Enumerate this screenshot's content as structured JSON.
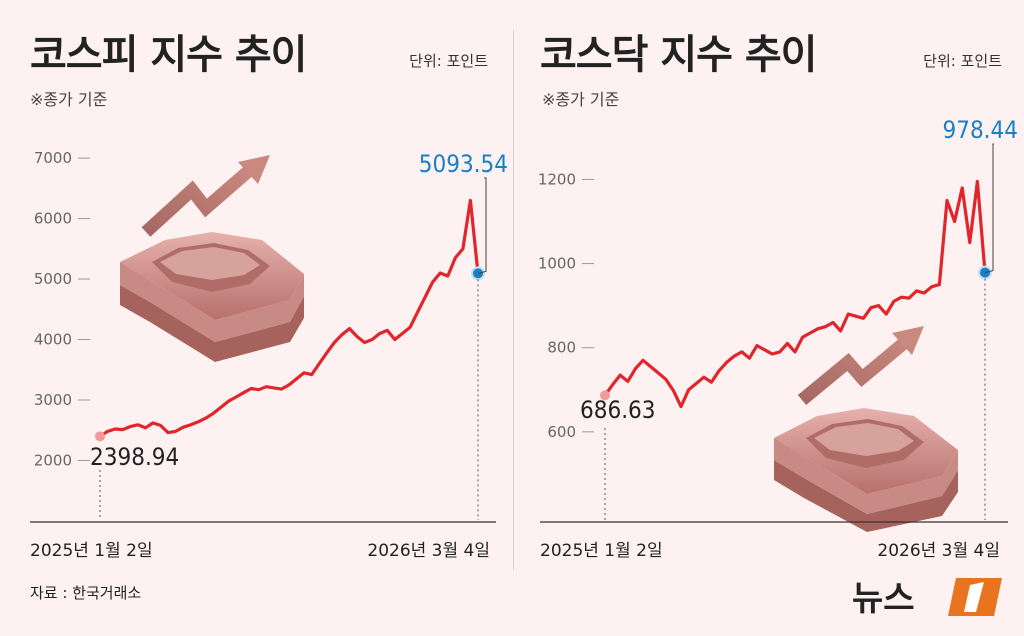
{
  "source": "자료 : 한국거래소",
  "logo_text": "뉴스1",
  "colors": {
    "line": "#e0262b",
    "highlight": "#1a7fc4",
    "axis": "#888888"
  },
  "chart_data": [
    {
      "type": "line",
      "title": "코스피 지수 추이",
      "unit": "단위: 포인트",
      "note": "※종가 기준",
      "ylim": [
        1800,
        7200
      ],
      "yticks": [
        2000,
        3000,
        4000,
        5000,
        6000,
        7000
      ],
      "xlabels": [
        "2025년 1월 2일",
        "2026년 3월 4일"
      ],
      "start_label": "2398.94",
      "end_label": "5093.54",
      "series": [
        {
          "values": [
            2398.94,
            2480,
            2520,
            2510,
            2560,
            2590,
            2540,
            2620,
            2580,
            2460,
            2480,
            2550,
            2590,
            2640,
            2700,
            2780,
            2880,
            2980,
            3050,
            3120,
            3190,
            3170,
            3220,
            3200,
            3180,
            3250,
            3350,
            3450,
            3420,
            3600,
            3780,
            3950,
            4080,
            4180,
            4050,
            3950,
            4000,
            4100,
            4150,
            4000,
            4100,
            4200,
            4450,
            4700,
            4950,
            5100,
            5050,
            5350,
            5500,
            6300,
            5093.54
          ]
        }
      ]
    },
    {
      "type": "line",
      "title": "코스닥 지수 추이",
      "unit": "단위: 포인트",
      "note": "※종가 기준",
      "ylim": [
        560,
        1270
      ],
      "yticks": [
        600,
        800,
        1000,
        1200
      ],
      "xlabels": [
        "2025년 1월 2일",
        "2026년 3월 4일"
      ],
      "start_label": "686.63",
      "end_label": "978.44",
      "series": [
        {
          "values": [
            686.63,
            712,
            735,
            720,
            750,
            770,
            755,
            740,
            725,
            698,
            660,
            700,
            715,
            730,
            718,
            745,
            765,
            780,
            790,
            775,
            805,
            795,
            785,
            790,
            810,
            790,
            825,
            835,
            845,
            850,
            860,
            840,
            880,
            875,
            870,
            895,
            900,
            880,
            910,
            920,
            918,
            935,
            930,
            945,
            950,
            1150,
            1100,
            1180,
            1050,
            1195,
            978.44
          ]
        }
      ]
    }
  ]
}
